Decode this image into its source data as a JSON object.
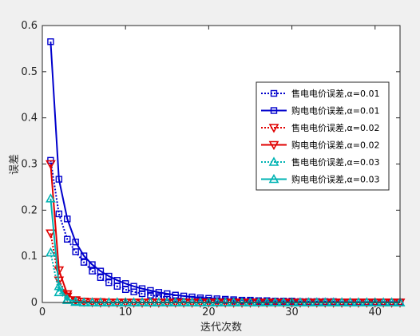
{
  "chart_data": {
    "type": "line",
    "xlabel": "迭代次数",
    "ylabel": "误差",
    "xlim": [
      0,
      43
    ],
    "ylim": [
      0,
      0.6
    ],
    "xticks": [
      0,
      10,
      20,
      30,
      40
    ],
    "yticks": [
      0,
      0.1,
      0.2,
      0.3,
      0.4,
      0.5,
      0.6
    ],
    "grid": false,
    "legend_position": "right",
    "x": [
      1,
      2,
      3,
      4,
      5,
      6,
      7,
      8,
      9,
      10,
      11,
      12,
      13,
      14,
      15,
      16,
      17,
      18,
      19,
      20,
      21,
      22,
      23,
      24,
      25,
      26,
      27,
      28,
      29,
      30,
      31,
      32,
      33,
      34,
      35,
      36,
      37,
      38,
      39,
      40,
      41,
      42,
      43
    ],
    "series": [
      {
        "name": "售电电价误差,α=0.01",
        "color": "#0000cc",
        "line": "dotted",
        "marker": "square",
        "values": [
          0.308,
          0.192,
          0.137,
          0.11,
          0.087,
          0.068,
          0.054,
          0.043,
          0.035,
          0.028,
          0.023,
          0.019,
          0.016,
          0.013,
          0.011,
          0.009,
          0.008,
          0.007,
          0.006,
          0.005,
          0.004,
          0.004,
          0.003,
          0.003,
          0.003,
          0.002,
          0.002,
          0.002,
          0.002,
          0.002,
          0.001,
          0.001,
          0.001,
          0.001,
          0.001,
          0.001,
          0.001,
          0.001,
          0.001,
          0.001,
          0.001,
          0.001,
          0.001
        ]
      },
      {
        "name": "购电电价误差,α=0.01",
        "color": "#0000cc",
        "line": "solid",
        "marker": "square",
        "values": [
          0.565,
          0.267,
          0.181,
          0.131,
          0.101,
          0.082,
          0.068,
          0.057,
          0.048,
          0.041,
          0.035,
          0.03,
          0.026,
          0.022,
          0.019,
          0.016,
          0.014,
          0.012,
          0.01,
          0.009,
          0.008,
          0.007,
          0.006,
          0.005,
          0.005,
          0.004,
          0.004,
          0.003,
          0.003,
          0.003,
          0.002,
          0.002,
          0.002,
          0.002,
          0.002,
          0.001,
          0.001,
          0.001,
          0.001,
          0.001,
          0.001,
          0.001,
          0.001
        ]
      },
      {
        "name": "售电电价误差,α=0.02",
        "color": "#e00000",
        "line": "dotted",
        "marker": "triangle-down",
        "values": [
          0.15,
          0.048,
          0.013,
          0.004,
          0.002,
          0.001,
          0.001,
          0,
          0,
          0,
          0,
          0,
          0,
          0,
          0,
          0,
          0,
          0,
          0,
          0,
          0,
          0,
          0,
          0,
          0,
          0,
          0,
          0,
          0,
          0,
          0,
          0,
          0,
          0,
          0,
          0,
          0,
          0,
          0,
          0,
          0,
          0,
          0
        ]
      },
      {
        "name": "购电电价误差,α=0.02",
        "color": "#e00000",
        "line": "solid",
        "marker": "triangle-down",
        "values": [
          0.3,
          0.07,
          0.018,
          0.005,
          0.002,
          0.001,
          0,
          0,
          0,
          0,
          0,
          0,
          0,
          0,
          0,
          0,
          0,
          0,
          0,
          0,
          0,
          0,
          0,
          0,
          0,
          0,
          0,
          0,
          0,
          0,
          0,
          0,
          0,
          0,
          0,
          0,
          0,
          0,
          0,
          0,
          0,
          0,
          0
        ]
      },
      {
        "name": "售电电价误差,α=0.03",
        "color": "#00b3b3",
        "line": "dotted",
        "marker": "triangle-up",
        "values": [
          0.108,
          0.022,
          0.005,
          0.001,
          0,
          0,
          0,
          0,
          0,
          0,
          0,
          0,
          0,
          0,
          0,
          0,
          0,
          0,
          0,
          0,
          0,
          0,
          0,
          0,
          0,
          0,
          0,
          0,
          0,
          0,
          0,
          0,
          0,
          0,
          0,
          0,
          0,
          0,
          0,
          0,
          0,
          0,
          0
        ]
      },
      {
        "name": "购电电价误差,α=0.03",
        "color": "#00b3b3",
        "line": "solid",
        "marker": "triangle-up",
        "values": [
          0.225,
          0.035,
          0.007,
          0.002,
          0,
          0,
          0,
          0,
          0,
          0,
          0,
          0,
          0,
          0,
          0,
          0,
          0,
          0,
          0,
          0,
          0,
          0,
          0,
          0,
          0,
          0,
          0,
          0,
          0,
          0,
          0,
          0,
          0,
          0,
          0,
          0,
          0,
          0,
          0,
          0,
          0,
          0,
          0
        ]
      }
    ]
  }
}
